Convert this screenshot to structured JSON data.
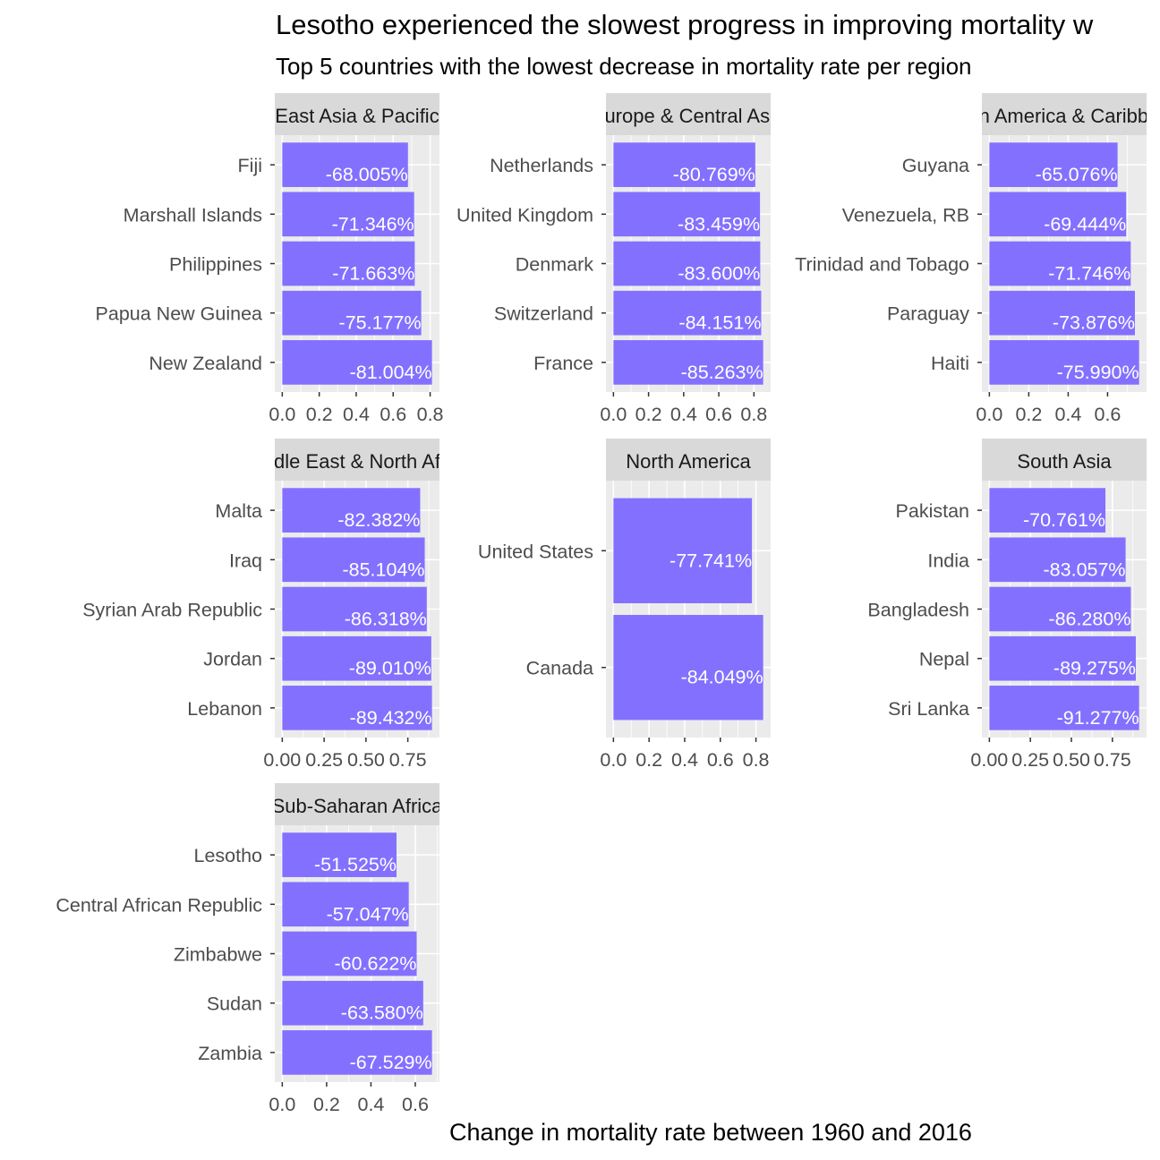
{
  "chart_data": {
    "type": "bar",
    "orientation": "horizontal",
    "faceted": true,
    "title": "Lesotho experienced the slowest progress in improving mortality w",
    "subtitle": "Top 5 countries with the lowest decrease in mortality rate per region",
    "xlabel": "Change in mortality rate between 1960 and 2016",
    "ylabel": "",
    "bar_color": "#8470FF",
    "panel_background": "#EBEBEB",
    "strip_background": "#D9D9D9",
    "grid": true,
    "legend": "none",
    "panels": [
      {
        "region": "East Asia & Pacific",
        "ticks": [
          "0.0",
          "0.2",
          "0.4",
          "0.6",
          "0.8"
        ],
        "tick_values": [
          0,
          0.2,
          0.4,
          0.6,
          0.8
        ],
        "categories": [
          "Fiji",
          "Marshall Islands",
          "Philippines",
          "Papua New Guinea",
          "New Zealand"
        ],
        "values": [
          0.68005,
          0.71346,
          0.71663,
          0.75177,
          0.81004
        ],
        "labels": [
          "-68.005%",
          "-71.346%",
          "-71.663%",
          "-75.177%",
          "-81.004%"
        ]
      },
      {
        "region": "Europe & Central Asia",
        "ticks": [
          "0.0",
          "0.2",
          "0.4",
          "0.6",
          "0.8"
        ],
        "tick_values": [
          0,
          0.2,
          0.4,
          0.6,
          0.8
        ],
        "categories": [
          "Netherlands",
          "United Kingdom",
          "Denmark",
          "Switzerland",
          "France"
        ],
        "values": [
          0.80769,
          0.83459,
          0.836,
          0.84151,
          0.85263
        ],
        "labels": [
          "-80.769%",
          "-83.459%",
          "-83.600%",
          "-84.151%",
          "-85.263%"
        ]
      },
      {
        "region": "Latin America & Caribbean",
        "ticks": [
          "0.0",
          "0.2",
          "0.4",
          "0.6"
        ],
        "tick_values": [
          0,
          0.2,
          0.4,
          0.6
        ],
        "categories": [
          "Guyana",
          "Venezuela, RB",
          "Trinidad and Tobago",
          "Paraguay",
          "Haiti"
        ],
        "values": [
          0.65076,
          0.69444,
          0.71746,
          0.73876,
          0.7599
        ],
        "labels": [
          "-65.076%",
          "-69.444%",
          "-71.746%",
          "-73.876%",
          "-75.990%"
        ]
      },
      {
        "region": "Middle East & North Africa",
        "ticks": [
          "0.00",
          "0.25",
          "0.50",
          "0.75"
        ],
        "tick_values": [
          0,
          0.25,
          0.5,
          0.75
        ],
        "categories": [
          "Malta",
          "Iraq",
          "Syrian Arab Republic",
          "Jordan",
          "Lebanon"
        ],
        "values": [
          0.82382,
          0.85104,
          0.86318,
          0.8901,
          0.89432
        ],
        "labels": [
          "-82.382%",
          "-85.104%",
          "-86.318%",
          "-89.010%",
          "-89.432%"
        ]
      },
      {
        "region": "North America",
        "ticks": [
          "0.0",
          "0.2",
          "0.4",
          "0.6",
          "0.8"
        ],
        "tick_values": [
          0,
          0.2,
          0.4,
          0.6,
          0.8
        ],
        "categories": [
          "United States",
          "Canada"
        ],
        "values": [
          0.77741,
          0.84049
        ],
        "labels": [
          "-77.741%",
          "-84.049%"
        ]
      },
      {
        "region": "South Asia",
        "ticks": [
          "0.00",
          "0.25",
          "0.50",
          "0.75"
        ],
        "tick_values": [
          0,
          0.25,
          0.5,
          0.75
        ],
        "categories": [
          "Pakistan",
          "India",
          "Bangladesh",
          "Nepal",
          "Sri Lanka"
        ],
        "values": [
          0.70761,
          0.83057,
          0.8628,
          0.89275,
          0.91277
        ],
        "labels": [
          "-70.761%",
          "-83.057%",
          "-86.280%",
          "-89.275%",
          "-91.277%"
        ]
      },
      {
        "region": "Sub-Saharan Africa",
        "ticks": [
          "0.0",
          "0.2",
          "0.4",
          "0.6"
        ],
        "tick_values": [
          0,
          0.2,
          0.4,
          0.6
        ],
        "categories": [
          "Lesotho",
          "Central African Republic",
          "Zimbabwe",
          "Sudan",
          "Zambia"
        ],
        "values": [
          0.51525,
          0.57047,
          0.60622,
          0.6358,
          0.67529
        ],
        "labels": [
          "-51.525%",
          "-57.047%",
          "-60.622%",
          "-63.580%",
          "-67.529%"
        ]
      }
    ]
  }
}
